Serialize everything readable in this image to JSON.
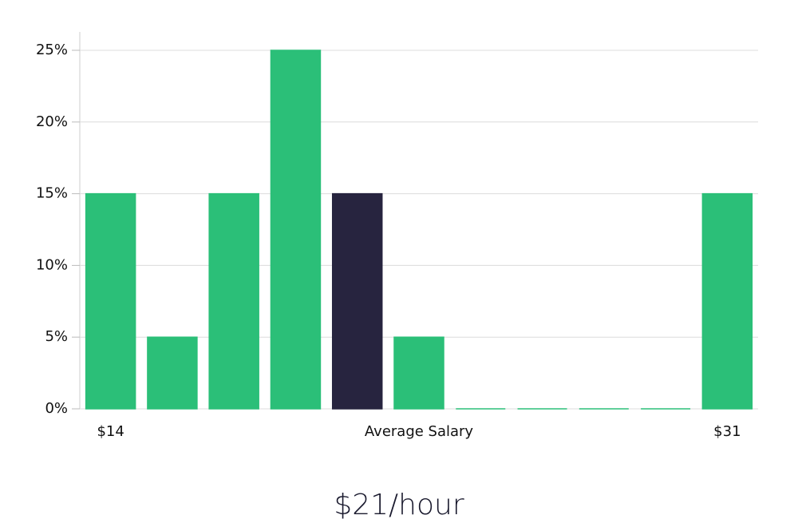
{
  "chart_data": {
    "type": "bar",
    "categories": [
      "$14",
      null,
      null,
      null,
      null,
      "Average Salary",
      null,
      null,
      null,
      null,
      "$31"
    ],
    "values": [
      15,
      5,
      15,
      25,
      15,
      5,
      0,
      0,
      0,
      0,
      15
    ],
    "colors": [
      "#2bbf78",
      "#2bbf78",
      "#2bbf78",
      "#2bbf78",
      "#27243f",
      "#2bbf78",
      "#2bbf78",
      "#2bbf78",
      "#2bbf78",
      "#2bbf78",
      "#2bbf78"
    ],
    "ylim": [
      0,
      25
    ],
    "yticks": [
      {
        "value": 0,
        "label": "0%"
      },
      {
        "value": 5,
        "label": "5%"
      },
      {
        "value": 10,
        "label": "10%"
      },
      {
        "value": 15,
        "label": "15%"
      },
      {
        "value": 20,
        "label": "20%"
      },
      {
        "value": 25,
        "label": "25%"
      }
    ],
    "grid": true,
    "annotation": "$21/hour"
  }
}
